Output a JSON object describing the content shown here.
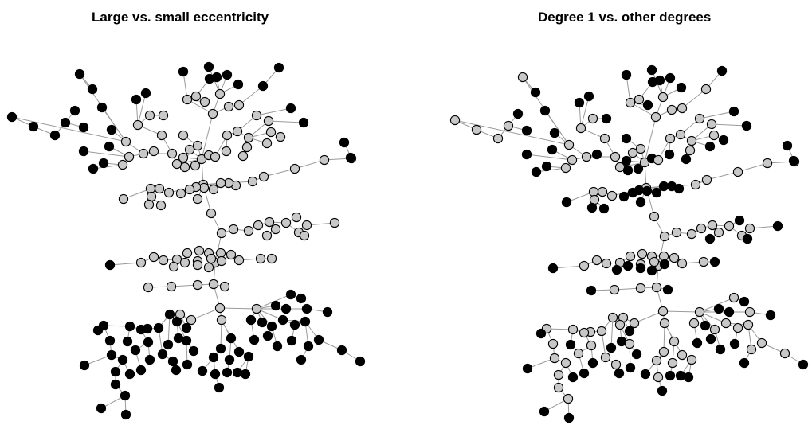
{
  "panels": [
    {
      "title": "Large vs. small eccentricity"
    },
    {
      "title": "Degree 1 vs. other degrees"
    }
  ],
  "legend_colors": {
    "highlighted": "#000000",
    "other": "#c8c8c8"
  }
}
